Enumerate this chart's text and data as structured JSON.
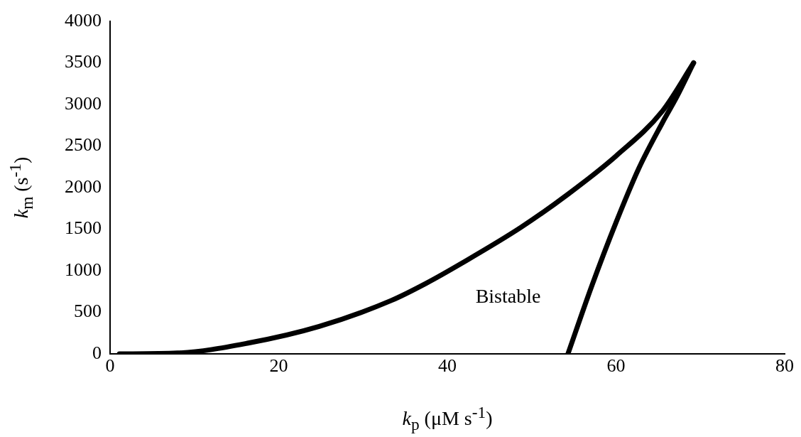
{
  "chart_data": {
    "type": "line",
    "xlabel": "k$_{p}$ (μM s$^{-1}$)",
    "ylabel": "k$_{m}$ (s$^{-1}$)",
    "xlim": [
      0,
      80
    ],
    "xticks": [
      0,
      20,
      40,
      60,
      80
    ],
    "ylim": [
      0,
      4000
    ],
    "yticks": [
      0,
      500,
      1000,
      1500,
      2000,
      2500,
      3000,
      3500,
      4000
    ],
    "grid": false,
    "legend": false,
    "marker": "none",
    "line_style": "solid",
    "series": [
      {
        "color": "#000000",
        "x": [
          1.1,
          8,
          16.4,
          24.8,
          33.3,
          37.5,
          41.7,
          48.7,
          54.3,
          60,
          65.5,
          69.2
        ],
        "values": [
          0,
          10,
          130,
          330,
          640,
          850,
          1090,
          1520,
          1920,
          2380,
          2920,
          3500
        ]
      },
      {
        "color": "#000000",
        "x": [
          54.3,
          57.1,
          60,
          62.7,
          65.5,
          67.2,
          69.2
        ],
        "values": [
          0,
          810,
          1580,
          2230,
          2780,
          3090,
          3500
        ]
      }
    ],
    "annotations": [
      "Bistable"
    ]
  }
}
